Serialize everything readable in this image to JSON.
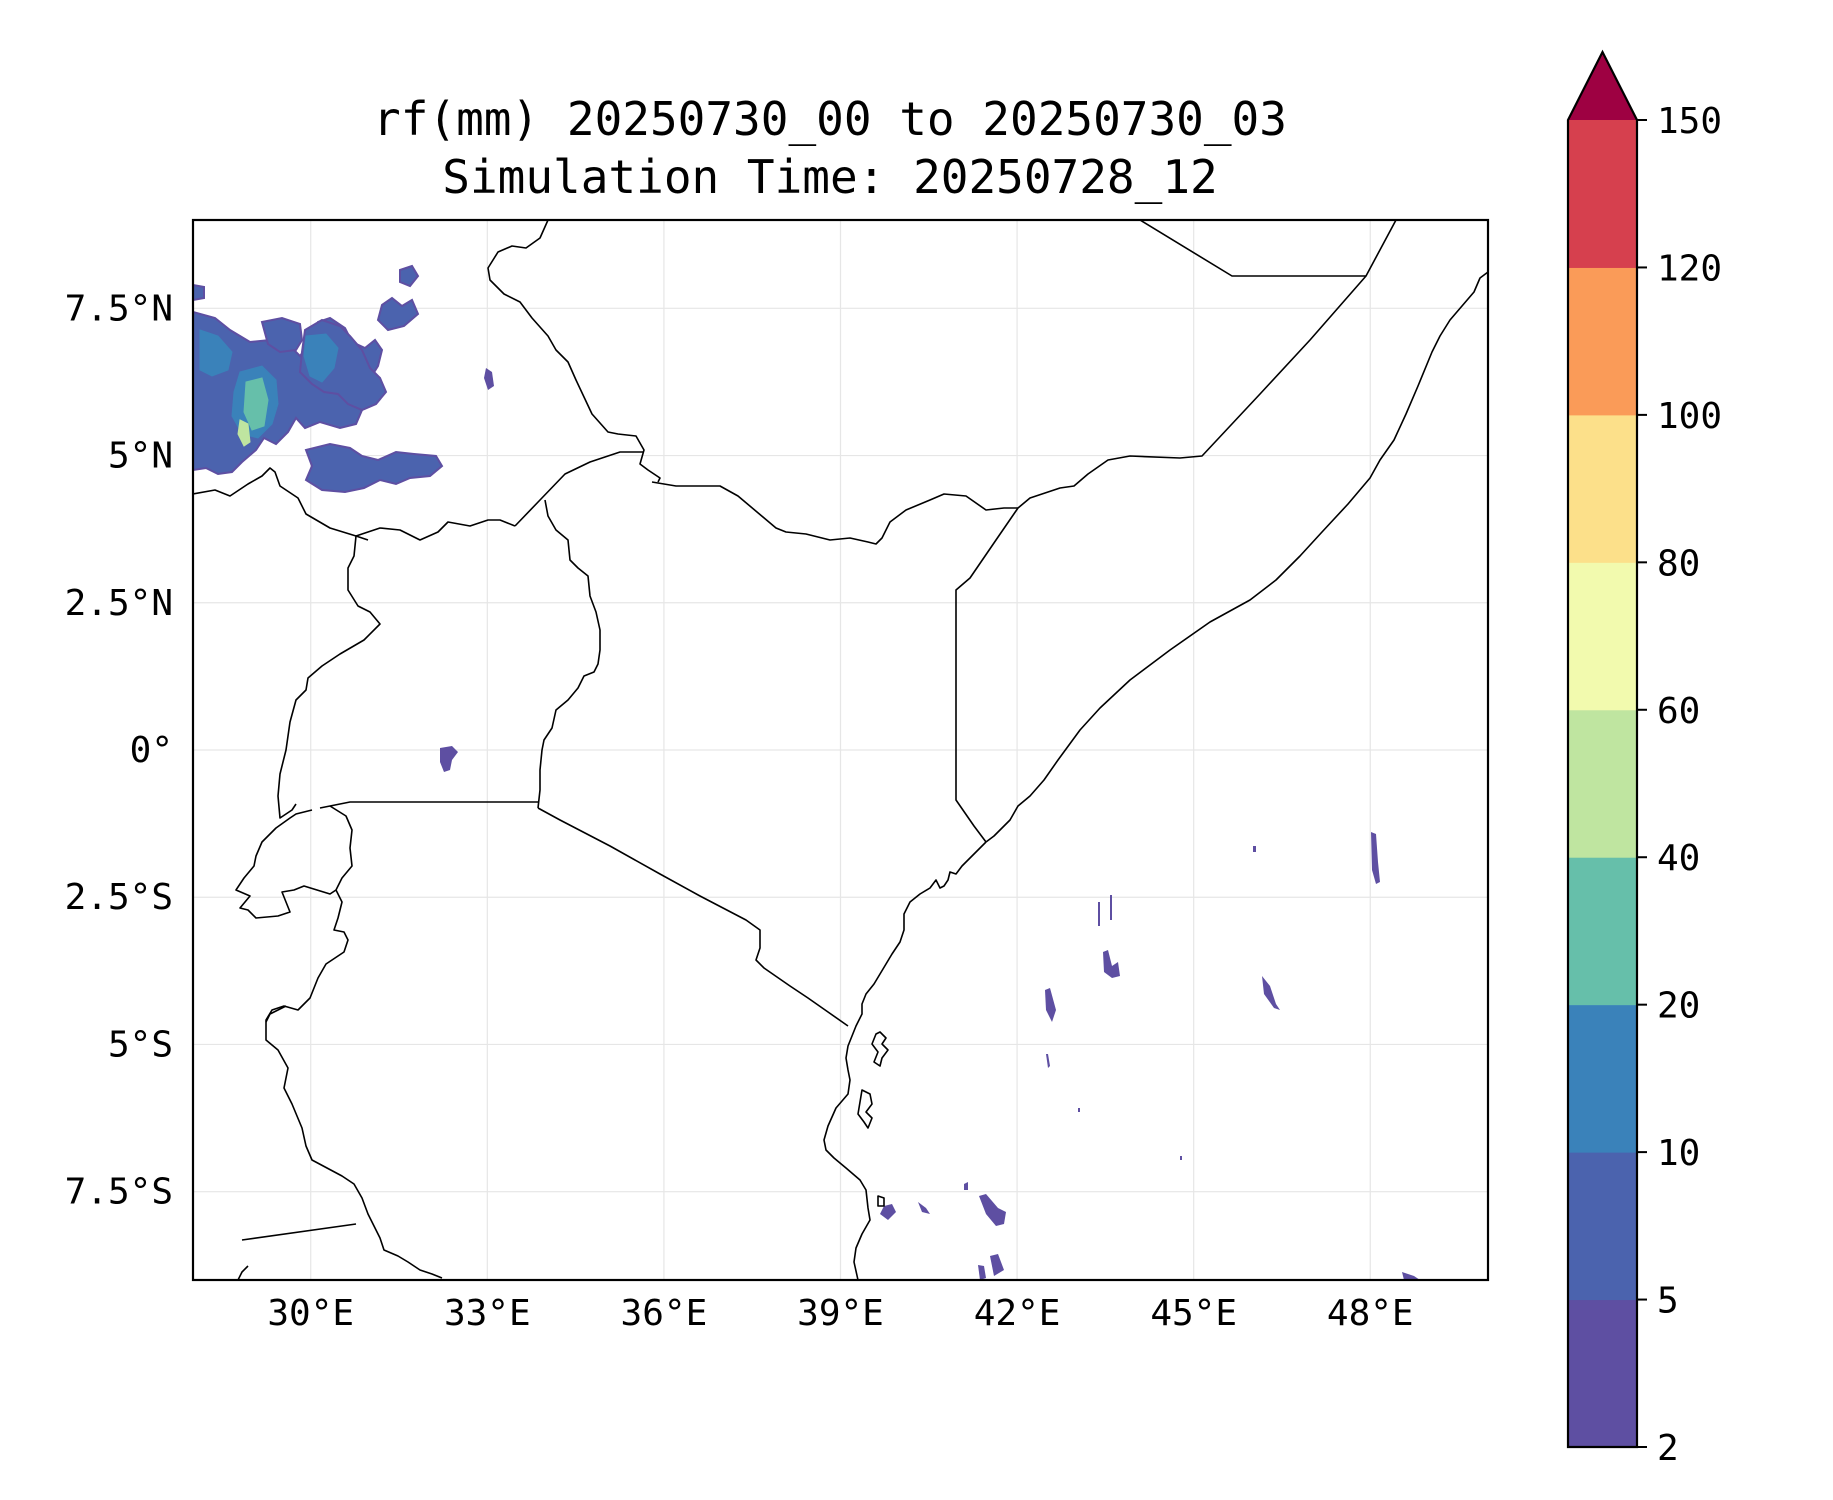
{
  "title": {
    "line1": "rf(mm) 20250730_00 to 20250730_03",
    "line2": "Simulation Time: 20250728_12"
  },
  "map": {
    "lon_range": [
      28,
      50
    ],
    "lat_range": [
      -9,
      9
    ],
    "x_ticks": [
      {
        "value": 30,
        "label": "30°E"
      },
      {
        "value": 33,
        "label": "33°E"
      },
      {
        "value": 36,
        "label": "36°E"
      },
      {
        "value": 39,
        "label": "39°E"
      },
      {
        "value": 42,
        "label": "42°E"
      },
      {
        "value": 45,
        "label": "45°E"
      },
      {
        "value": 48,
        "label": "48°E"
      }
    ],
    "y_ticks": [
      {
        "value": 7.5,
        "label": "7.5°N"
      },
      {
        "value": 5,
        "label": "5°N"
      },
      {
        "value": 2.5,
        "label": "2.5°N"
      },
      {
        "value": 0,
        "label": "0°"
      },
      {
        "value": -2.5,
        "label": "2.5°S"
      },
      {
        "value": -5,
        "label": "5°S"
      },
      {
        "value": -7.5,
        "label": "7.5°S"
      }
    ],
    "gridlines": true
  },
  "colorbar": {
    "extend": "max",
    "extend_color": "#9e0142",
    "levels": [
      {
        "value": 2,
        "label": "2",
        "color": "#5e4fa2"
      },
      {
        "value": 5,
        "label": "5",
        "color": "#4b63ae"
      },
      {
        "value": 10,
        "label": "10",
        "color": "#3a82ba"
      },
      {
        "value": 20,
        "label": "20",
        "color": "#66bfaa"
      },
      {
        "value": 40,
        "label": "40",
        "color": "#bfe5a0"
      },
      {
        "value": 60,
        "label": "60",
        "color": "#f2faae"
      },
      {
        "value": 80,
        "label": "80",
        "color": "#fce08a"
      },
      {
        "value": 100,
        "label": "100",
        "color": "#fa9b58"
      },
      {
        "value": 120,
        "label": "120",
        "color": "#d6404e"
      },
      {
        "value": 150,
        "label": "150",
        "color": null
      }
    ]
  }
}
